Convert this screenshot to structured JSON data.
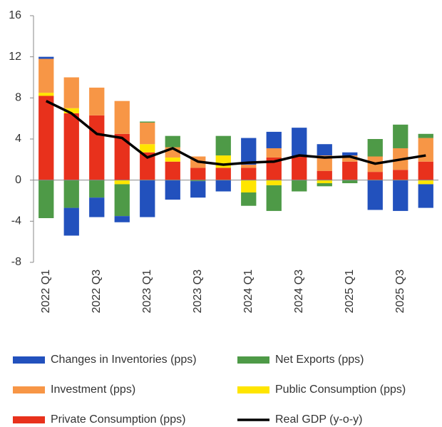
{
  "chart_data": {
    "type": "bar",
    "stacked": true,
    "categories": [
      "2022 Q1",
      null,
      "2022 Q3",
      null,
      "2023 Q1",
      null,
      "2023 Q3",
      null,
      "2024 Q1",
      null,
      "2024 Q3",
      null,
      "2025 Q1",
      null,
      "2025 Q3",
      null
    ],
    "ylim": [
      -8,
      16
    ],
    "yticks": [
      -8,
      -4,
      0,
      4,
      8,
      12,
      16
    ],
    "series": [
      {
        "name": "Changes in Inventories (pps)",
        "color": "#2251bd",
        "values": [
          0.2,
          -2.7,
          -1.9,
          -0.6,
          -3.6,
          -1.9,
          -1.6,
          -1.1,
          2.6,
          1.6,
          2.8,
          1.1,
          0.3,
          -2.9,
          -3.0,
          -2.3
        ]
      },
      {
        "name": "Net Exports (pps)",
        "color": "#4e9a47",
        "values": [
          -3.7,
          -2.7,
          -1.7,
          -3.1,
          0.1,
          1.1,
          -0.1,
          1.9,
          -1.3,
          -2.5,
          -1.1,
          -0.3,
          -0.3,
          1.7,
          2.3,
          0.4
        ]
      },
      {
        "name": "Investment (pps)",
        "color": "#f79646",
        "values": [
          3.3,
          3.0,
          2.7,
          3.2,
          2.1,
          1.0,
          1.1,
          0,
          0.3,
          0.9,
          0,
          1.5,
          0.6,
          1.5,
          2.1,
          2.3
        ]
      },
      {
        "name": "Public Consumption (pps)",
        "color": "#ffe500",
        "values": [
          0.3,
          0.5,
          0,
          -0.4,
          0.8,
          0.4,
          0,
          1.2,
          -1.2,
          -0.5,
          0,
          -0.3,
          0,
          0,
          0,
          -0.4
        ]
      },
      {
        "name": "Private Consumption (pps)",
        "color": "#e8311c",
        "values": [
          8.2,
          6.5,
          6.3,
          4.5,
          2.7,
          1.8,
          1.2,
          1.2,
          1.2,
          2.2,
          2.3,
          0.9,
          1.8,
          0.8,
          1.0,
          1.8
        ]
      },
      {
        "name": "Real GDP (y-o-y)",
        "color": "#000000",
        "type": "line",
        "values": [
          7.7,
          6.5,
          4.5,
          4.1,
          2.2,
          3.1,
          1.8,
          1.5,
          1.7,
          1.8,
          2.4,
          2.2,
          2.3,
          1.6,
          2.0,
          2.4
        ]
      }
    ]
  }
}
